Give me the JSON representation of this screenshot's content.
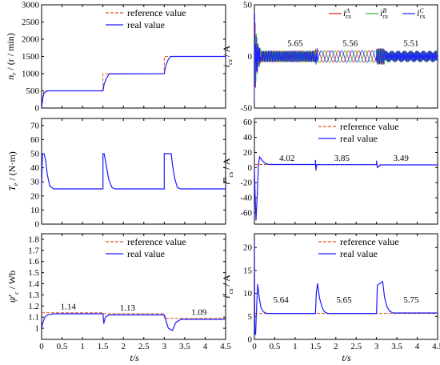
{
  "colors": {
    "reference": "#e05020",
    "real": "#1a1aff",
    "phaseA": "#e02020",
    "phaseB": "#30b030",
    "phaseC": "#2020ff"
  },
  "x_axis": {
    "label": "t/s",
    "ticks": [
      "0",
      "0.5",
      "1",
      "1.5",
      "2",
      "2.5",
      "3",
      "3.5",
      "4",
      "4.5"
    ]
  },
  "chart_data": [
    {
      "type": "line",
      "ylabel": "n_r / (r / min)",
      "ylim": [
        0,
        3000
      ],
      "yticks": [
        "0",
        "500",
        "1000",
        "1500",
        "2000",
        "2500",
        "3000"
      ],
      "xlim": [
        0,
        4.5
      ],
      "legend": {
        "position": "top-right",
        "entries": [
          "reference value",
          "real value"
        ]
      },
      "series": [
        {
          "name": "reference value",
          "x": [
            0,
            0.05,
            1.5,
            1.5,
            3.0,
            3.0,
            4.5
          ],
          "values": [
            0,
            500,
            500,
            1000,
            1000,
            1500,
            1500
          ]
        },
        {
          "name": "real value",
          "x": [
            0,
            0.03,
            0.06,
            0.1,
            0.15,
            1.5,
            1.53,
            1.58,
            1.65,
            3.0,
            3.03,
            3.08,
            3.15,
            4.5
          ],
          "values": [
            0,
            300,
            430,
            480,
            500,
            500,
            700,
            850,
            990,
            1000,
            1200,
            1370,
            1500,
            1500
          ]
        }
      ],
      "annotations": []
    },
    {
      "type": "line",
      "ylabel": "i_cs / A",
      "ylim": [
        -50,
        50
      ],
      "yticks": [
        "-50",
        "0",
        "50"
      ],
      "xlim": [
        0,
        4.5
      ],
      "legend": {
        "position": "top-right",
        "entries": [
          "i_cs^A",
          "i_cs^B",
          "i_cs^C"
        ]
      },
      "series": [
        {
          "name": "i_cs^A"
        },
        {
          "name": "i_cs^B"
        },
        {
          "name": "i_cs^C"
        }
      ],
      "amplitudes": [
        {
          "x_start": 0.15,
          "x_end": 1.5,
          "amplitude": 5.65
        },
        {
          "x_start": 1.55,
          "x_end": 3.0,
          "amplitude": 5.56
        },
        {
          "x_start": 3.2,
          "x_end": 4.5,
          "amplitude": 5.51
        }
      ],
      "annotations": [
        {
          "text": "5.65",
          "x": 1.0,
          "y": 10
        },
        {
          "text": "5.56",
          "x": 2.35,
          "y": 10
        },
        {
          "text": "5.51",
          "x": 3.85,
          "y": 10
        }
      ]
    },
    {
      "type": "line",
      "ylabel": "T_e / (N·m)",
      "ylim": [
        0,
        75
      ],
      "yticks": [
        "0",
        "10",
        "20",
        "30",
        "40",
        "50",
        "60",
        "70"
      ],
      "xlim": [
        0,
        4.5
      ],
      "legend": null,
      "series": [
        {
          "name": "T_e",
          "x": [
            0,
            0.02,
            0.06,
            0.1,
            0.14,
            0.2,
            0.3,
            1.5,
            1.5,
            1.53,
            1.58,
            1.64,
            1.72,
            1.8,
            3.0,
            3.0,
            3.17,
            3.2,
            3.26,
            3.32,
            3.4,
            4.5
          ],
          "values": [
            25,
            50,
            50,
            45,
            35,
            27,
            25,
            25,
            50,
            50,
            42,
            32,
            26,
            25,
            25,
            50,
            50,
            42,
            32,
            26,
            25,
            25
          ]
        }
      ],
      "annotations": []
    },
    {
      "type": "line",
      "ylabel": "i_cs^m / A",
      "ylim": [
        -75,
        65
      ],
      "yticks": [
        "-60",
        "-40",
        "-20",
        "0",
        "20",
        "40",
        "60"
      ],
      "xlim": [
        0,
        4.5
      ],
      "legend": {
        "position": "top-right",
        "entries": [
          "reference value",
          "real value"
        ]
      },
      "series": [
        {
          "name": "reference value",
          "x": [
            0,
            0.1,
            1.5,
            1.5,
            3.0,
            3.0,
            4.5
          ],
          "values": [
            4.02,
            4.02,
            4.02,
            3.85,
            3.85,
            3.49,
            3.49
          ]
        },
        {
          "name": "real value",
          "x": [
            0,
            0.02,
            0.04,
            0.07,
            0.1,
            0.13,
            0.18,
            0.25,
            0.35,
            1.5,
            1.5,
            1.51,
            1.53,
            1.6,
            3.0,
            3.0,
            3.02,
            3.1,
            3.2,
            4.5
          ],
          "values": [
            0,
            -40,
            -70,
            -35,
            5,
            14,
            10,
            6,
            4.02,
            4.02,
            10,
            -4,
            3.85,
            3.85,
            3.85,
            9,
            0,
            3.49,
            3.49,
            3.49
          ]
        }
      ],
      "annotations": [
        {
          "text": "4.02",
          "x": 0.8,
          "y": 9
        },
        {
          "text": "3.85",
          "x": 2.15,
          "y": 9
        },
        {
          "text": "3.49",
          "x": 3.6,
          "y": 9
        }
      ]
    },
    {
      "type": "line",
      "ylabel": "ψ^r_c / Wb",
      "ylim": [
        0.9,
        1.85
      ],
      "yticks": [
        "1",
        "1.1",
        "1.2",
        "1.3",
        "1.4",
        "1.5",
        "1.6",
        "1.7",
        "1.8"
      ],
      "xlim": [
        0,
        4.5
      ],
      "legend": {
        "position": "top-right",
        "entries": [
          "reference value",
          "real value"
        ]
      },
      "series": [
        {
          "name": "reference value",
          "x": [
            0,
            1.5,
            1.5,
            3.0,
            3.0,
            4.5
          ],
          "values": [
            1.14,
            1.14,
            1.13,
            1.13,
            1.09,
            1.09
          ]
        },
        {
          "name": "real value",
          "x": [
            0,
            0.03,
            0.08,
            0.15,
            0.3,
            1.5,
            1.52,
            1.56,
            1.65,
            3.0,
            3.1,
            3.2,
            3.28,
            3.4,
            4.5
          ],
          "values": [
            1.0,
            1.05,
            1.1,
            1.12,
            1.13,
            1.13,
            1.04,
            1.1,
            1.12,
            1.12,
            1.0,
            0.98,
            1.05,
            1.08,
            1.08
          ]
        }
      ],
      "annotations": [
        {
          "text": "1.14",
          "x": 0.65,
          "y": 1.17
        },
        {
          "text": "1.13",
          "x": 2.1,
          "y": 1.16
        },
        {
          "text": "1.09",
          "x": 3.85,
          "y": 1.12
        }
      ]
    },
    {
      "type": "line",
      "ylabel": "i^t_cs / A",
      "ylim": [
        0,
        23
      ],
      "yticks": [
        "0",
        "5",
        "10",
        "15",
        "20"
      ],
      "xlim": [
        0,
        4.5
      ],
      "legend": {
        "position": "top-right",
        "entries": [
          "reference value",
          "real value"
        ]
      },
      "series": [
        {
          "name": "reference value",
          "x": [
            0,
            4.5
          ],
          "values": [
            5.64,
            5.64
          ]
        },
        {
          "name": "real value",
          "x": [
            0,
            0.01,
            0.03,
            0.05,
            0.08,
            0.12,
            0.16,
            0.22,
            0.3,
            1.5,
            1.52,
            1.55,
            1.6,
            1.66,
            1.72,
            1.8,
            3.0,
            3.02,
            3.15,
            3.2,
            3.26,
            3.32,
            3.4,
            4.5
          ],
          "values": [
            22,
            2,
            1,
            6,
            12,
            9,
            7,
            6,
            5.64,
            5.64,
            10,
            12.2,
            9,
            7,
            6,
            5.65,
            5.65,
            11.8,
            12.6,
            9,
            7,
            6.2,
            5.75,
            5.75
          ]
        }
      ],
      "annotations": [
        {
          "text": "5.64",
          "x": 0.65,
          "y": 8
        },
        {
          "text": "5.65",
          "x": 2.2,
          "y": 8
        },
        {
          "text": "5.75",
          "x": 3.85,
          "y": 8
        }
      ]
    }
  ]
}
